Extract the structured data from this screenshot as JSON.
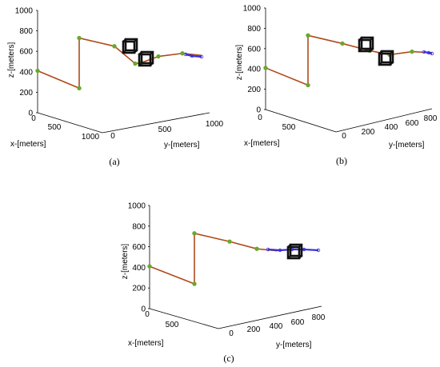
{
  "chart_data": [
    {
      "type": "line",
      "panel": "a",
      "caption": "(a)",
      "zlabel": "z-[meters]",
      "xlabel": "x-[meters]",
      "ylabel": "y-[meters]",
      "z_ticks": [
        "0",
        "200",
        "400",
        "600",
        "800",
        "1000"
      ],
      "x_ticks": [
        "0",
        "500",
        "1000"
      ],
      "y_ticks": [
        "0",
        "500",
        "1000"
      ],
      "zlim": [
        0,
        1000
      ],
      "path_vertices_z": [
        410,
        240,
        730,
        650,
        480,
        490,
        550,
        580,
        560
      ],
      "waypoints": 8,
      "trajectory_color": "#b04a1a",
      "waypoint_color": "#6aa82a",
      "uav_trail_color": "#3a2fd6",
      "obstacles": 2
    },
    {
      "type": "line",
      "panel": "b",
      "caption": "(b)",
      "zlabel": "z-[meters]",
      "xlabel": "x-[meters]",
      "ylabel": "y-[meters]",
      "z_ticks": [
        "0",
        "200",
        "400",
        "600",
        "800",
        "1000"
      ],
      "x_ticks": [
        "0",
        "500"
      ],
      "y_ticks": [
        "0",
        "200",
        "400",
        "600",
        "800"
      ],
      "zlim": [
        0,
        1000
      ],
      "path_vertices_z": [
        410,
        240,
        730,
        650,
        580,
        540,
        570,
        560
      ],
      "waypoints": 7,
      "trajectory_color": "#b04a1a",
      "waypoint_color": "#6aa82a",
      "uav_trail_color": "#3a2fd6",
      "obstacles": 2
    },
    {
      "type": "line",
      "panel": "c",
      "caption": "(c)",
      "zlabel": "z-[meters]",
      "xlabel": "x-[meters]",
      "ylabel": "y-[meters]",
      "z_ticks": [
        "0",
        "200",
        "400",
        "600",
        "800",
        "1000"
      ],
      "x_ticks": [
        "0",
        "500"
      ],
      "y_ticks": [
        "0",
        "200",
        "400",
        "600",
        "800"
      ],
      "zlim": [
        0,
        1000
      ],
      "path_vertices_z": [
        410,
        240,
        730,
        650,
        580,
        560
      ],
      "waypoints": 5,
      "trajectory_color": "#b04a1a",
      "waypoint_color": "#6aa82a",
      "uav_trail_color": "#3a2fd6",
      "obstacles": 1
    }
  ]
}
